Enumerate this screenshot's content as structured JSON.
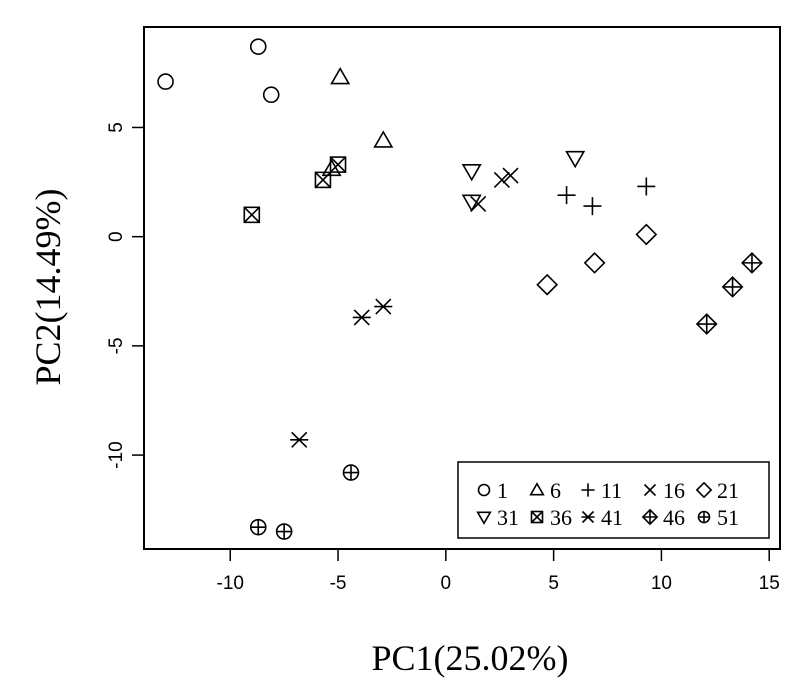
{
  "chart_data": {
    "type": "scatter",
    "title": "",
    "xlabel": "PC1(25.02%)",
    "ylabel": "PC2(14.49%)",
    "xlim": [
      -14,
      15.5
    ],
    "ylim": [
      -14.3,
      9.6
    ],
    "xticks": [
      -10,
      -5,
      0,
      5,
      10,
      15
    ],
    "yticks": [
      -10,
      -5,
      0,
      5
    ],
    "xtick_labels": [
      "-10",
      "-5",
      "0",
      "5",
      "10",
      "15"
    ],
    "ytick_labels": [
      "-10",
      "-5",
      "0",
      "5"
    ],
    "grid": false,
    "legend_position": "bottom-right",
    "series": [
      {
        "name": "1",
        "marker": "circle",
        "points": [
          [
            -13.0,
            7.1
          ],
          [
            -8.7,
            8.7
          ],
          [
            -8.1,
            6.5
          ]
        ]
      },
      {
        "name": "6",
        "marker": "triangle-up",
        "points": [
          [
            -4.9,
            7.3
          ],
          [
            -2.9,
            4.4
          ],
          [
            -5.3,
            3.1
          ]
        ]
      },
      {
        "name": "11",
        "marker": "plus",
        "points": [
          [
            5.6,
            1.9
          ],
          [
            6.8,
            1.4
          ],
          [
            9.3,
            2.3
          ]
        ]
      },
      {
        "name": "16",
        "marker": "cross",
        "points": [
          [
            1.5,
            1.5
          ],
          [
            2.6,
            2.6
          ],
          [
            3.0,
            2.8
          ]
        ]
      },
      {
        "name": "21",
        "marker": "diamond",
        "points": [
          [
            4.7,
            -2.2
          ],
          [
            6.9,
            -1.2
          ],
          [
            9.3,
            0.1
          ]
        ]
      },
      {
        "name": "31",
        "marker": "triangle-down",
        "points": [
          [
            1.2,
            3.0
          ],
          [
            1.2,
            1.6
          ],
          [
            6.0,
            3.6
          ]
        ]
      },
      {
        "name": "36",
        "marker": "square-cross",
        "points": [
          [
            -9.0,
            1.0
          ],
          [
            -5.7,
            2.6
          ],
          [
            -5.0,
            3.3
          ]
        ]
      },
      {
        "name": "41",
        "marker": "asterisk",
        "points": [
          [
            -6.8,
            -9.3
          ],
          [
            -3.9,
            -3.7
          ],
          [
            -2.9,
            -3.2
          ]
        ]
      },
      {
        "name": "46",
        "marker": "diamond-plus",
        "points": [
          [
            12.1,
            -4.0
          ],
          [
            13.3,
            -2.3
          ],
          [
            14.2,
            -1.2
          ]
        ]
      },
      {
        "name": "51",
        "marker": "circle-plus",
        "points": [
          [
            -8.7,
            -13.3
          ],
          [
            -7.5,
            -13.5
          ],
          [
            -4.4,
            -10.8
          ]
        ]
      }
    ]
  }
}
